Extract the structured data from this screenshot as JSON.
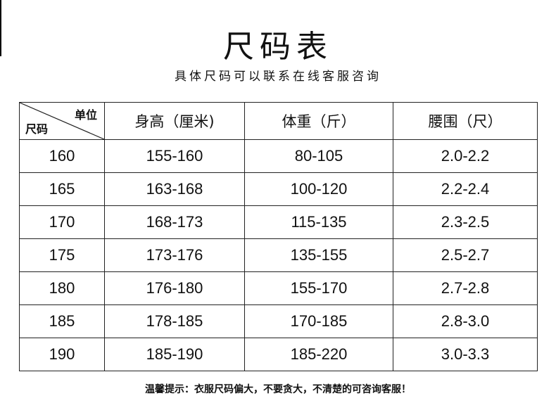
{
  "title": "尺码表",
  "subtitle": "具体尺码可以联系在线客服咨询",
  "table": {
    "corner_top": "单位",
    "corner_bottom": "尺码",
    "headers": [
      "身高（厘米)",
      "体重（斤）",
      "腰围（尺）"
    ],
    "rows": [
      [
        "160",
        "155-160",
        "80-105",
        "2.0-2.2"
      ],
      [
        "165",
        "163-168",
        "100-120",
        "2.2-2.4"
      ],
      [
        "170",
        "168-173",
        "115-135",
        "2.3-2.5"
      ],
      [
        "175",
        "173-176",
        "135-155",
        "2.5-2.7"
      ],
      [
        "180",
        "176-180",
        "155-170",
        "2.7-2.8"
      ],
      [
        "185",
        "178-185",
        "170-185",
        "2.8-3.0"
      ],
      [
        "190",
        "185-190",
        "185-220",
        "3.0-3.3"
      ]
    ]
  },
  "tip": "温馨提示：衣服尺码偏大，不要贪大，不清楚的可咨询客服！"
}
